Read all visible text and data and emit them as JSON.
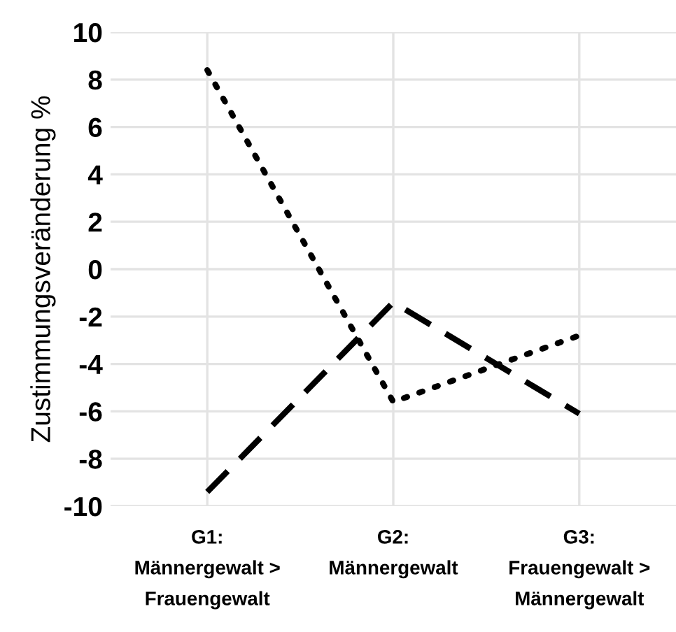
{
  "chart_data": {
    "type": "line",
    "ylabel": "Zustimmungsveränderung %",
    "categories": [
      "G1:\nMännergewalt >\nFrauengewalt",
      "G2:\nMännergewalt",
      "G3:\nFrauengewalt >\nMännergewalt"
    ],
    "series": [
      {
        "color": "#000000",
        "line_style": "dotted",
        "values": [
          8.4,
          -5.6,
          -2.8
        ]
      },
      {
        "color": "#000000",
        "line_style": "dashed",
        "values": [
          -9.4,
          -1.4,
          -6.1
        ]
      }
    ],
    "ylim": [
      -10,
      10
    ],
    "yticks": [
      -10,
      -8,
      -6,
      -4,
      -2,
      0,
      2,
      4,
      6,
      8,
      10
    ],
    "grid": true,
    "marker": "none"
  }
}
